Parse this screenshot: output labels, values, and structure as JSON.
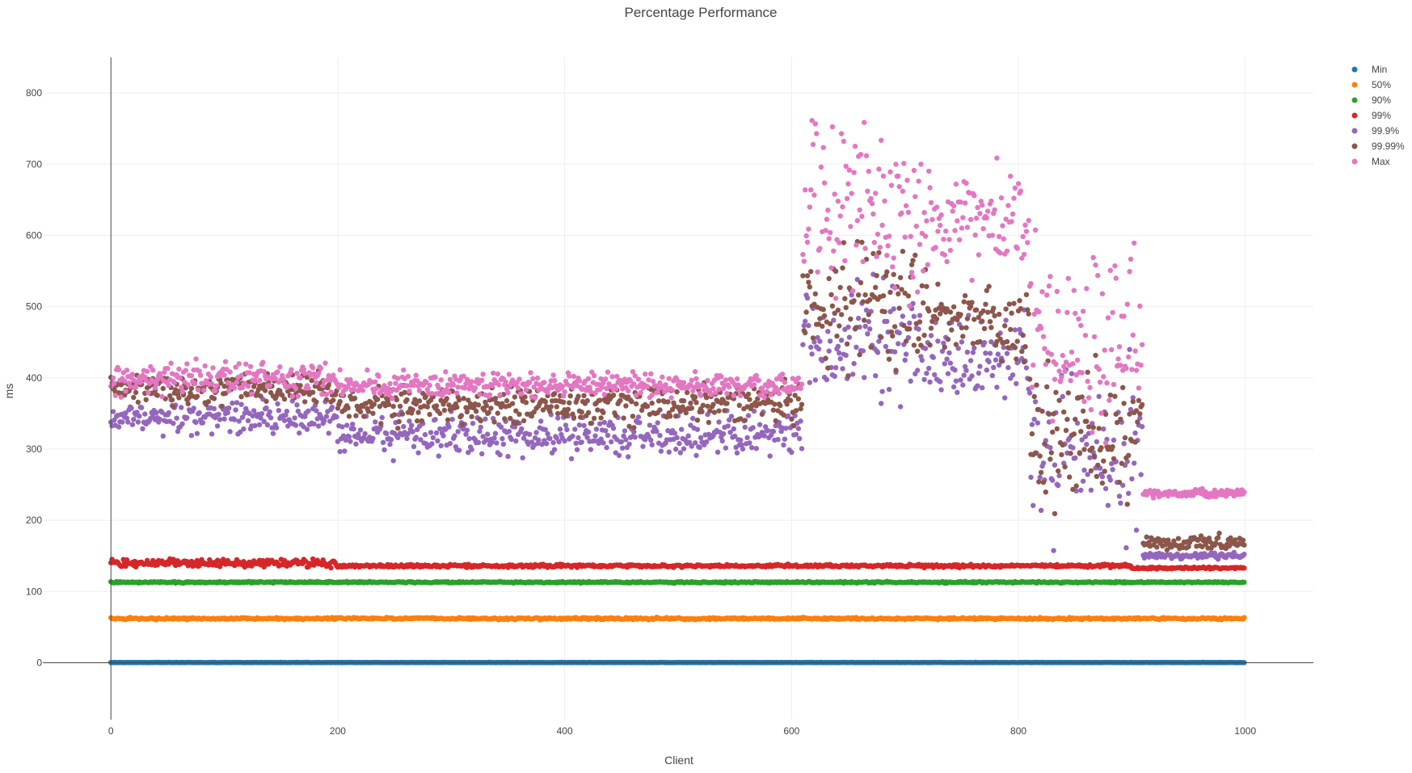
{
  "chart_data": {
    "type": "scatter",
    "title": "Percentage Performance",
    "xlabel": "Client",
    "ylabel": "ms",
    "xlim": [
      -60,
      1060
    ],
    "ylim": [
      -80,
      850
    ],
    "xticks": [
      0,
      200,
      400,
      600,
      800,
      1000
    ],
    "yticks": [
      0,
      100,
      200,
      300,
      400,
      500,
      600,
      700,
      800
    ],
    "grid": true,
    "legend_position": "top-right",
    "n_clients": 1000,
    "series": [
      {
        "name": "Min",
        "color": "#1f77b4",
        "segments": [
          {
            "from": 0,
            "to": 1000,
            "center": 0.3,
            "spread": 0.3
          }
        ]
      },
      {
        "name": "50%",
        "color": "#ff7f0e",
        "segments": [
          {
            "from": 0,
            "to": 1000,
            "center": 62,
            "spread": 2
          }
        ]
      },
      {
        "name": "90%",
        "color": "#2ca02c",
        "segments": [
          {
            "from": 0,
            "to": 1000,
            "center": 113,
            "spread": 1.5
          }
        ]
      },
      {
        "name": "99%",
        "color": "#d62728",
        "segments": [
          {
            "from": 0,
            "to": 200,
            "center": 140,
            "spread": 8
          },
          {
            "from": 200,
            "to": 900,
            "center": 136,
            "spread": 3
          },
          {
            "from": 900,
            "to": 1000,
            "center": 133,
            "spread": 2
          }
        ]
      },
      {
        "name": "99.9%",
        "color": "#9467bd",
        "segments": [
          {
            "from": 0,
            "to": 200,
            "center": 345,
            "spread": 35
          },
          {
            "from": 200,
            "to": 610,
            "center": 320,
            "spread": 40
          },
          {
            "from": 610,
            "to": 720,
            "center": 450,
            "spread": 120
          },
          {
            "from": 720,
            "to": 810,
            "center": 430,
            "spread": 80
          },
          {
            "from": 810,
            "to": 910,
            "center": 300,
            "spread": 150
          },
          {
            "from": 910,
            "to": 1000,
            "center": 150,
            "spread": 6
          }
        ]
      },
      {
        "name": "99.99%",
        "color": "#8c564b",
        "segments": [
          {
            "from": 0,
            "to": 200,
            "center": 385,
            "spread": 30
          },
          {
            "from": 200,
            "to": 610,
            "center": 365,
            "spread": 40
          },
          {
            "from": 610,
            "to": 720,
            "center": 500,
            "spread": 120
          },
          {
            "from": 720,
            "to": 810,
            "center": 480,
            "spread": 80
          },
          {
            "from": 810,
            "to": 910,
            "center": 330,
            "spread": 160
          },
          {
            "from": 910,
            "to": 1000,
            "center": 168,
            "spread": 15
          }
        ]
      },
      {
        "name": "Max",
        "color": "#e377c2",
        "segments": [
          {
            "from": 0,
            "to": 200,
            "center": 400,
            "spread": 35
          },
          {
            "from": 200,
            "to": 610,
            "center": 390,
            "spread": 25
          },
          {
            "from": 610,
            "to": 720,
            "center": 620,
            "spread": 180
          },
          {
            "from": 720,
            "to": 810,
            "center": 620,
            "spread": 100
          },
          {
            "from": 810,
            "to": 910,
            "center": 450,
            "spread": 180
          },
          {
            "from": 910,
            "to": 1000,
            "center": 238,
            "spread": 8
          }
        ]
      }
    ]
  }
}
